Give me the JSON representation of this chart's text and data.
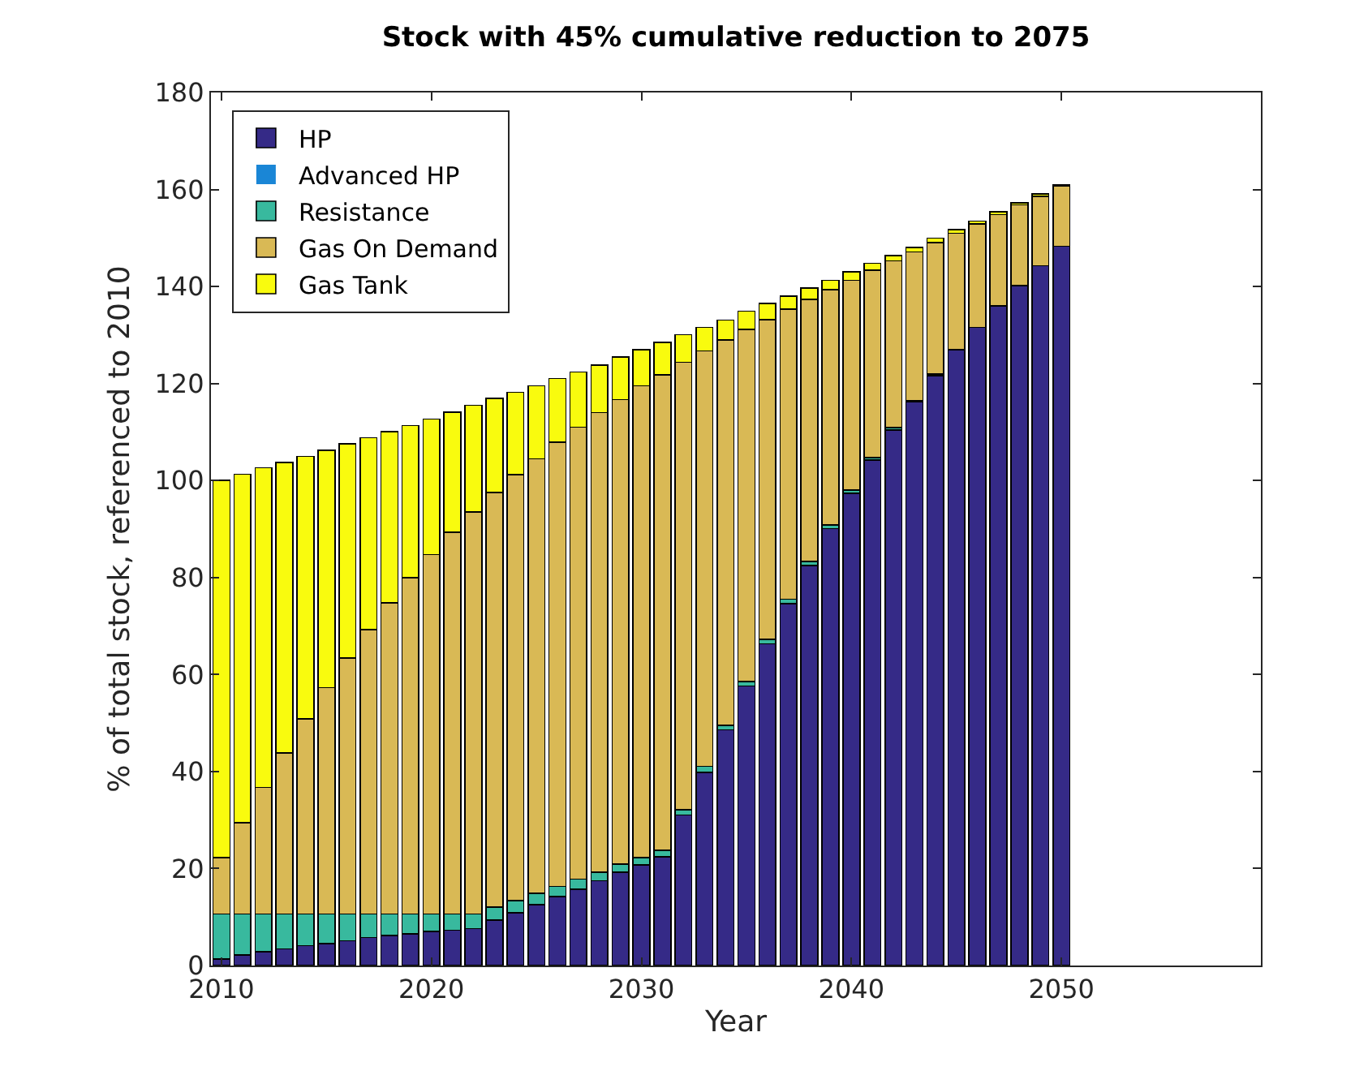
{
  "chart_data": {
    "type": "bar",
    "stacked": true,
    "title": "Stock with 45% cumulative reduction to 2075",
    "xlabel": "Year",
    "ylabel": "% of total stock, referenced to 2010",
    "x": [
      2010,
      2011,
      2012,
      2013,
      2014,
      2015,
      2016,
      2017,
      2018,
      2019,
      2020,
      2021,
      2022,
      2023,
      2024,
      2025,
      2026,
      2027,
      2028,
      2029,
      2030,
      2031,
      2032,
      2033,
      2034,
      2035,
      2036,
      2037,
      2038,
      2039,
      2040,
      2041,
      2042,
      2043,
      2044,
      2045,
      2046,
      2047,
      2048,
      2049,
      2050
    ],
    "series": [
      {
        "name": "HP",
        "color": "#352a87",
        "values": [
          1.3,
          2.2,
          2.8,
          3.4,
          4.1,
          4.5,
          5.1,
          5.8,
          6.2,
          6.5,
          7.0,
          7.3,
          7.6,
          9.4,
          10.9,
          12.5,
          14.2,
          15.7,
          17.5,
          19.2,
          20.7,
          22.4,
          31.0,
          39.8,
          48.6,
          57.6,
          66.3,
          74.6,
          82.5,
          90.1,
          97.4,
          104.2,
          110.4,
          116.3,
          121.6,
          127.0,
          131.6,
          136.0,
          140.2,
          144.3,
          148.3
        ]
      },
      {
        "name": "Advanced HP",
        "color": "#1a86d6",
        "values": [
          0,
          0,
          0,
          0,
          0,
          0,
          0,
          0,
          0,
          0,
          0,
          0,
          0,
          0,
          0,
          0,
          0,
          0,
          0,
          0,
          0,
          0,
          0,
          0,
          0,
          0,
          0,
          0,
          0,
          0,
          0,
          0,
          0,
          0,
          0,
          0,
          0,
          0,
          0,
          0,
          0
        ]
      },
      {
        "name": "Resistance",
        "color": "#38b99e",
        "values": [
          9.3,
          8.4,
          7.8,
          7.2,
          6.5,
          6.1,
          5.5,
          4.8,
          4.4,
          4.1,
          3.6,
          3.3,
          3.0,
          2.6,
          2.5,
          2.4,
          2.1,
          2.1,
          1.7,
          1.7,
          1.6,
          1.4,
          1.1,
          1.3,
          0.9,
          1.0,
          1.0,
          0.9,
          0.8,
          0.7,
          0.6,
          0.5,
          0.5,
          0.2,
          0.4,
          0,
          0,
          0,
          0,
          0,
          0
        ]
      },
      {
        "name": "Gas On Demand",
        "color": "#d9b955",
        "values": [
          11.7,
          18.8,
          26.1,
          33.2,
          40.3,
          46.7,
          52.8,
          58.7,
          64.2,
          69.4,
          74.1,
          78.7,
          82.9,
          85.5,
          87.8,
          89.6,
          91.6,
          93.2,
          94.8,
          95.8,
          97.2,
          98.0,
          92.3,
          85.6,
          79.5,
          72.6,
          65.9,
          59.8,
          54.0,
          48.6,
          43.3,
          38.7,
          34.4,
          30.6,
          27.1,
          24.0,
          21.3,
          18.8,
          16.6,
          14.3,
          12.4
        ]
      },
      {
        "name": "Gas Tank",
        "color": "#f9fb0e",
        "values": [
          77.7,
          71.9,
          65.9,
          59.9,
          54.1,
          48.9,
          44.2,
          39.5,
          35.3,
          31.3,
          28.0,
          24.8,
          22.0,
          19.4,
          17.0,
          15.0,
          13.1,
          11.4,
          9.8,
          8.8,
          7.5,
          6.7,
          5.7,
          4.9,
          4.1,
          3.7,
          3.3,
          2.7,
          2.4,
          1.9,
          1.7,
          1.4,
          1.1,
          1.0,
          0.9,
          0.7,
          0.6,
          0.6,
          0.5,
          0.5,
          0.2
        ]
      }
    ],
    "xlim": [
      2009.5,
      2059.5
    ],
    "xticks": [
      2010,
      2020,
      2030,
      2040,
      2050
    ],
    "ylim": [
      0,
      180
    ],
    "yticks": [
      0,
      20,
      40,
      60,
      80,
      100,
      120,
      140,
      160,
      180
    ],
    "legend": "top left"
  }
}
